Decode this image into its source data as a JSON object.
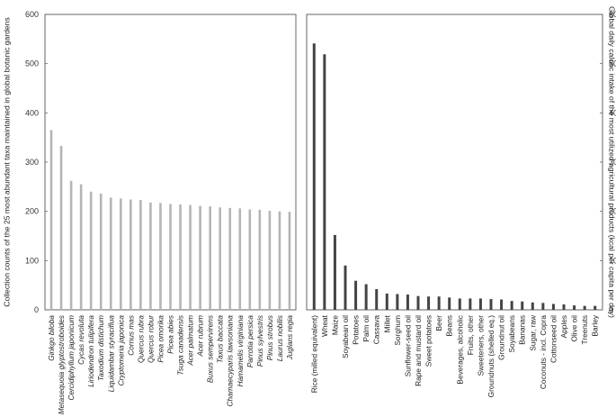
{
  "chart_data": [
    {
      "type": "bar",
      "ylabel": "Collection counts of the 25 most abundant taxa maintained in global botanic gardens",
      "ylabel_side": "left",
      "ylim": [
        0,
        600
      ],
      "yticks": [
        0,
        100,
        200,
        300,
        400,
        500,
        600
      ],
      "grid": false,
      "italic_categories": true,
      "color": "#b5b5b5",
      "categories": [
        "Ginkgo biloba",
        "Metasequoia glyptostroboides",
        "Cercidiphyllum japonicum",
        "Cycas revoluta",
        "Liriodendron tulipifera",
        "Taxodium distichum",
        "Liquidambar styraciflua",
        "Cryptomeria japonica",
        "Cornus mas",
        "Quercus rubra",
        "Quercus robur",
        "Picea omorika",
        "Picea abies",
        "Tsuga canadensis",
        "Acer palmatum",
        "Acer rubrum",
        "Buxus sempervirens",
        "Taxus baccata",
        "Chamaecyparis lawsoniana",
        "Hamamelis virginiana",
        "Parrotia persica",
        "Pinus sylvestris",
        "Pinus strobus",
        "Laurus nobilis",
        "Juglans regia"
      ],
      "values": [
        365,
        333,
        262,
        255,
        240,
        236,
        228,
        226,
        224,
        223,
        218,
        217,
        215,
        214,
        213,
        211,
        210,
        208,
        207,
        206,
        204,
        203,
        201,
        200,
        199
      ]
    },
    {
      "type": "bar",
      "ylabel": "Global daily caloric intake of the most utilized agricultural products (kcal per capita per day)",
      "ylabel_side": "right",
      "ylim": [
        0,
        600
      ],
      "yticks": [
        0,
        100,
        200,
        300,
        400,
        500,
        600
      ],
      "grid": false,
      "italic_categories": false,
      "color": "#444444",
      "categories": [
        "Rice (milled equivalent)",
        "Wheat",
        "Maize",
        "Soyabean oil",
        "Potatoes",
        "Palm oil",
        "Cassava",
        "Millet",
        "Sorghum",
        "Sunflower-seed oil",
        "Rape and mustard oil",
        "Sweet potatoes",
        "Beer",
        "Beans",
        "Beverages, alcoholic",
        "Fruits, other",
        "Sweeteners, other",
        "Groundnuts (shelled eq.)",
        "Groundnut oil",
        "Soyabeans",
        "Bananas",
        "Sugar, raw",
        "Coconuts - incl. Copra",
        "Cottonseed oil",
        "Apples",
        "Olive oil",
        "Treenuts",
        "Barley"
      ],
      "values": [
        541,
        519,
        152,
        90,
        59,
        52,
        42,
        33,
        32,
        31,
        28,
        27,
        27,
        25,
        23,
        23,
        23,
        22,
        21,
        18,
        17,
        15,
        14,
        12,
        11,
        9,
        8,
        8
      ]
    }
  ]
}
